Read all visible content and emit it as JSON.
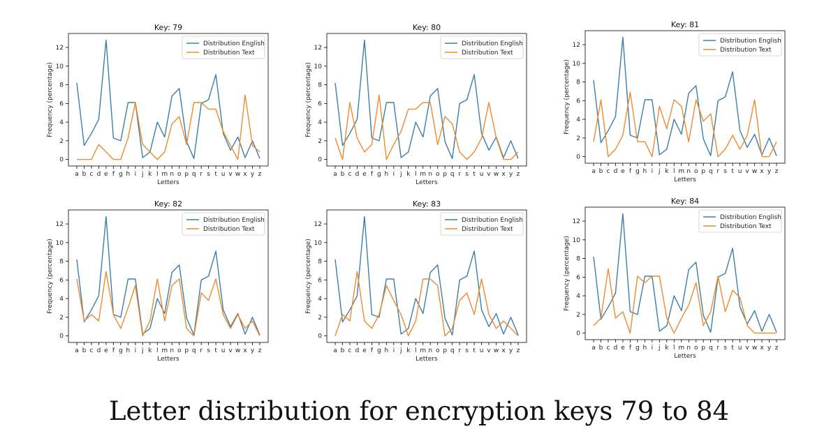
{
  "caption": "Letter distribution for encryption keys 79 to 84",
  "colors": {
    "english": "#3b7ea8",
    "text": "#ee8a2d",
    "axis": "#000000"
  },
  "chart_data": [
    {
      "type": "line",
      "title": "Key: 79",
      "xlabel": "Letters",
      "ylabel": "Frequency (percentage)",
      "ylim": [
        -0.7,
        13.5
      ],
      "yticks": [
        0,
        2,
        4,
        6,
        8,
        10,
        12
      ],
      "legend": "top-right",
      "categories": [
        "a",
        "b",
        "c",
        "d",
        "e",
        "f",
        "g",
        "h",
        "i",
        "j",
        "k",
        "l",
        "m",
        "n",
        "o",
        "p",
        "q",
        "r",
        "s",
        "t",
        "u",
        "v",
        "w",
        "x",
        "y",
        "z"
      ],
      "series": [
        {
          "name": "Distribution English",
          "values": [
            8.2,
            1.5,
            2.8,
            4.3,
            12.8,
            2.3,
            2.0,
            6.1,
            6.1,
            0.2,
            0.8,
            4.0,
            2.4,
            6.8,
            7.6,
            1.9,
            0.1,
            6.0,
            6.4,
            9.1,
            2.8,
            1.0,
            2.4,
            0.2,
            2.0,
            0.1
          ]
        },
        {
          "name": "Distribution Text",
          "values": [
            0.0,
            0.0,
            0.0,
            1.6,
            0.8,
            0.0,
            0.0,
            2.3,
            6.1,
            1.6,
            0.8,
            0.0,
            0.8,
            3.8,
            4.6,
            1.6,
            6.1,
            6.1,
            5.4,
            5.4,
            3.0,
            1.5,
            0.0,
            6.9,
            1.5,
            0.8
          ]
        }
      ]
    },
    {
      "type": "line",
      "title": "Key: 80",
      "xlabel": "Letters",
      "ylabel": "Frequency (percentage)",
      "ylim": [
        -0.7,
        13.5
      ],
      "yticks": [
        0,
        2,
        4,
        6,
        8,
        10,
        12
      ],
      "legend": "top-right",
      "categories": [
        "a",
        "b",
        "c",
        "d",
        "e",
        "f",
        "g",
        "h",
        "i",
        "j",
        "k",
        "l",
        "m",
        "n",
        "o",
        "p",
        "q",
        "r",
        "s",
        "t",
        "u",
        "v",
        "w",
        "x",
        "y",
        "z"
      ],
      "series": [
        {
          "name": "Distribution English",
          "values": [
            8.2,
            1.5,
            2.8,
            4.3,
            12.8,
            2.3,
            2.0,
            6.1,
            6.1,
            0.2,
            0.8,
            4.0,
            2.4,
            6.8,
            7.6,
            1.9,
            0.1,
            6.0,
            6.4,
            9.1,
            2.8,
            1.0,
            2.4,
            0.2,
            2.0,
            0.1
          ]
        },
        {
          "name": "Distribution Text",
          "values": [
            2.3,
            0.0,
            6.1,
            2.3,
            0.8,
            1.6,
            6.9,
            0.0,
            1.6,
            3.0,
            5.4,
            5.4,
            6.1,
            6.1,
            1.6,
            4.6,
            3.8,
            0.8,
            0.0,
            0.8,
            2.3,
            6.1,
            2.3,
            0.0,
            0.0,
            0.8
          ]
        }
      ]
    },
    {
      "type": "line",
      "title": "Key: 81",
      "xlabel": "Letters",
      "ylabel": "Frequency (percentage)",
      "ylim": [
        -0.7,
        13.5
      ],
      "yticks": [
        0,
        2,
        4,
        6,
        8,
        10,
        12
      ],
      "legend": "top-right",
      "categories": [
        "a",
        "b",
        "c",
        "d",
        "e",
        "f",
        "g",
        "h",
        "i",
        "j",
        "k",
        "l",
        "m",
        "n",
        "o",
        "p",
        "q",
        "r",
        "s",
        "t",
        "u",
        "v",
        "w",
        "x",
        "y",
        "z"
      ],
      "series": [
        {
          "name": "Distribution English",
          "values": [
            8.2,
            1.5,
            2.8,
            4.3,
            12.8,
            2.3,
            2.0,
            6.1,
            6.1,
            0.2,
            0.8,
            4.0,
            2.4,
            6.8,
            7.6,
            1.9,
            0.1,
            6.0,
            6.4,
            9.1,
            2.8,
            1.0,
            2.4,
            0.2,
            2.0,
            0.1
          ]
        },
        {
          "name": "Distribution Text",
          "values": [
            1.6,
            6.1,
            0.0,
            0.8,
            2.3,
            6.9,
            1.6,
            1.6,
            0.0,
            5.4,
            3.0,
            6.1,
            5.4,
            1.6,
            6.1,
            3.8,
            4.6,
            0.0,
            0.8,
            2.3,
            0.8,
            2.3,
            6.1,
            0.0,
            0.0,
            1.6
          ]
        }
      ]
    },
    {
      "type": "line",
      "title": "Key: 82",
      "xlabel": "Letters",
      "ylabel": "Frequency (percentage)",
      "ylim": [
        -0.7,
        13.5
      ],
      "yticks": [
        0,
        2,
        4,
        6,
        8,
        10,
        12
      ],
      "legend": "top-right",
      "categories": [
        "a",
        "b",
        "c",
        "d",
        "e",
        "f",
        "g",
        "h",
        "i",
        "j",
        "k",
        "l",
        "m",
        "n",
        "o",
        "p",
        "q",
        "r",
        "s",
        "t",
        "u",
        "v",
        "w",
        "x",
        "y",
        "z"
      ],
      "series": [
        {
          "name": "Distribution English",
          "values": [
            8.2,
            1.5,
            2.8,
            4.3,
            12.8,
            2.3,
            2.0,
            6.1,
            6.1,
            0.2,
            0.8,
            4.0,
            2.4,
            6.8,
            7.6,
            1.9,
            0.1,
            6.0,
            6.4,
            9.1,
            2.8,
            1.0,
            2.4,
            0.2,
            2.0,
            0.1
          ]
        },
        {
          "name": "Distribution Text",
          "values": [
            6.1,
            1.6,
            2.3,
            1.6,
            6.9,
            2.3,
            0.8,
            3.0,
            5.4,
            0.0,
            1.6,
            6.1,
            1.6,
            5.4,
            6.1,
            0.8,
            0.0,
            4.6,
            3.8,
            6.1,
            2.3,
            0.8,
            2.3,
            0.8,
            1.6,
            0.0
          ]
        }
      ]
    },
    {
      "type": "line",
      "title": "Key: 83",
      "xlabel": "Letters",
      "ylabel": "Frequency (percentage)",
      "ylim": [
        -0.7,
        13.5
      ],
      "yticks": [
        0,
        2,
        4,
        6,
        8,
        10,
        12
      ],
      "legend": "top-right",
      "categories": [
        "a",
        "b",
        "c",
        "d",
        "e",
        "f",
        "g",
        "h",
        "i",
        "j",
        "k",
        "l",
        "m",
        "n",
        "o",
        "p",
        "q",
        "r",
        "s",
        "t",
        "u",
        "v",
        "w",
        "x",
        "y",
        "z"
      ],
      "series": [
        {
          "name": "Distribution English",
          "values": [
            8.2,
            1.5,
            2.8,
            4.3,
            12.8,
            2.3,
            2.0,
            6.1,
            6.1,
            0.2,
            0.8,
            4.0,
            2.4,
            6.8,
            7.6,
            1.9,
            0.1,
            6.0,
            6.4,
            9.1,
            2.8,
            1.0,
            2.4,
            0.2,
            2.0,
            0.1
          ]
        },
        {
          "name": "Distribution Text",
          "values": [
            0.0,
            2.3,
            1.6,
            6.9,
            1.6,
            0.8,
            2.3,
            5.4,
            3.8,
            2.3,
            0.0,
            1.6,
            6.1,
            6.1,
            5.4,
            0.0,
            0.8,
            3.8,
            4.6,
            2.3,
            6.1,
            2.3,
            0.8,
            1.6,
            0.8,
            0.0
          ]
        }
      ]
    },
    {
      "type": "line",
      "title": "Key: 84",
      "xlabel": "Letters",
      "ylabel": "Frequency (percentage)",
      "ylim": [
        -0.7,
        13.5
      ],
      "yticks": [
        0,
        2,
        4,
        6,
        8,
        10,
        12
      ],
      "legend": "top-right",
      "categories": [
        "a",
        "b",
        "c",
        "d",
        "e",
        "f",
        "g",
        "h",
        "i",
        "j",
        "k",
        "l",
        "m",
        "n",
        "o",
        "p",
        "q",
        "r",
        "s",
        "t",
        "u",
        "v",
        "w",
        "x",
        "y",
        "z"
      ],
      "series": [
        {
          "name": "Distribution English",
          "values": [
            8.2,
            1.5,
            2.8,
            4.3,
            12.8,
            2.3,
            2.0,
            6.1,
            6.1,
            0.2,
            0.8,
            4.0,
            2.4,
            6.8,
            7.6,
            1.9,
            0.1,
            6.0,
            6.4,
            9.1,
            2.8,
            1.0,
            2.4,
            0.2,
            2.0,
            0.1
          ]
        },
        {
          "name": "Distribution Text",
          "values": [
            0.8,
            1.6,
            6.9,
            1.6,
            2.3,
            0.0,
            6.1,
            5.4,
            6.1,
            6.1,
            1.6,
            0.0,
            1.6,
            3.0,
            5.4,
            0.8,
            2.3,
            6.1,
            2.3,
            4.6,
            3.8,
            0.8,
            0.0,
            0.0,
            0.0,
            0.0
          ]
        }
      ]
    }
  ]
}
